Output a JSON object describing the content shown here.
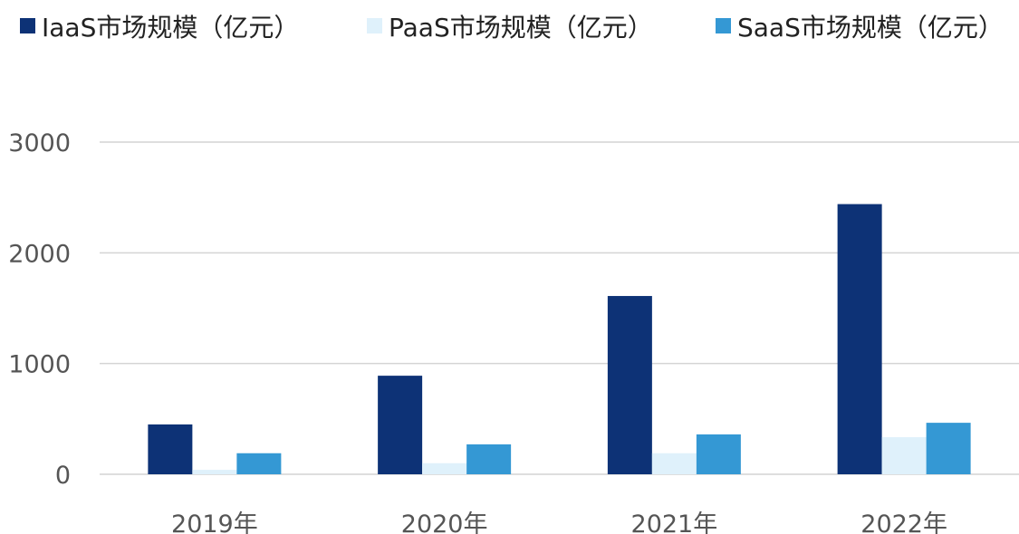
{
  "chart_data": {
    "type": "bar",
    "categories": [
      "2019年",
      "2020年",
      "2021年",
      "2022年"
    ],
    "series": [
      {
        "name": "IaaS市场规模（亿元）",
        "color": "#0d3276",
        "values": [
          450,
          890,
          1610,
          2440
        ]
      },
      {
        "name": "PaaS市场规模（亿元）",
        "color": "#dff1fb",
        "values": [
          40,
          100,
          190,
          335
        ]
      },
      {
        "name": "SaaS市场规模（亿元）",
        "color": "#3498d4",
        "values": [
          190,
          270,
          360,
          465
        ]
      }
    ],
    "ylim": [
      0,
      3000
    ],
    "yticks": [
      0,
      1000,
      2000,
      3000
    ],
    "grid": true,
    "legend": "top"
  }
}
